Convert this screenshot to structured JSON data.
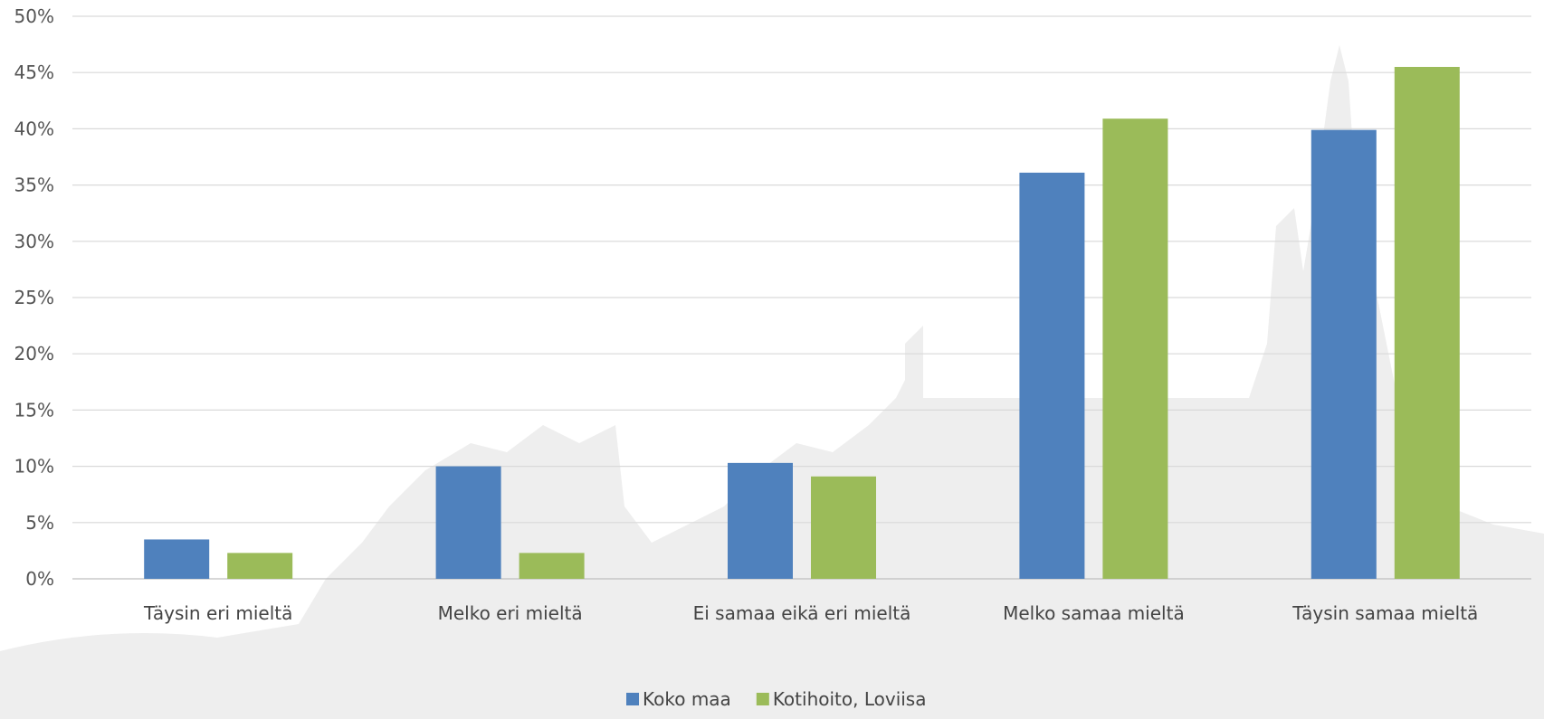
{
  "chart_data": {
    "type": "bar",
    "categories": [
      "Täysin eri mieltä",
      "Melko eri mieltä",
      "Ei samaa eikä eri mieltä",
      "Melko samaa mieltä",
      "Täysin samaa mieltä"
    ],
    "series": [
      {
        "name": "Koko maa",
        "color": "#4f81bd",
        "values": [
          3.5,
          10.0,
          10.3,
          36.1,
          39.9
        ]
      },
      {
        "name": "Kotihoito, Loviisa",
        "color": "#9bbb59",
        "values": [
          2.3,
          2.3,
          9.1,
          40.9,
          45.5
        ]
      }
    ],
    "title": "",
    "xlabel": "",
    "ylabel": "",
    "ylim": [
      0,
      50
    ],
    "yticks": [
      "0%",
      "5%",
      "10%",
      "15%",
      "20%",
      "25%",
      "30%",
      "35%",
      "40%",
      "45%",
      "50%"
    ],
    "grid": true,
    "legend_position": "bottom"
  }
}
